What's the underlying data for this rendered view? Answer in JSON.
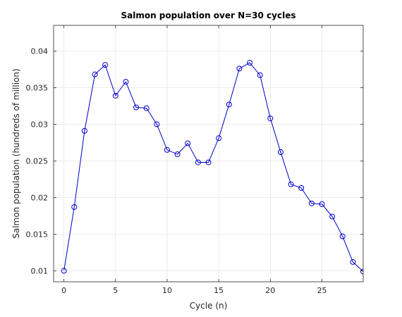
{
  "chart_data": {
    "type": "line",
    "title": "Salmon population over N=30 cycles",
    "xlabel": "Cycle (n)",
    "ylabel": "Salmon population (hundreds of million)",
    "xlim": [
      -1,
      29
    ],
    "ylim": [
      0.0085,
      0.0435
    ],
    "xticks": [
      0,
      5,
      10,
      15,
      20,
      25
    ],
    "yticks": [
      0.01,
      0.015,
      0.02,
      0.025,
      0.03,
      0.035,
      0.04
    ],
    "ytick_labels": [
      "0.01",
      "0.015",
      "0.02",
      "0.025",
      "0.03",
      "0.035",
      "0.04"
    ],
    "grid": true,
    "marker": "circle",
    "series": [
      {
        "color": "#0000cc",
        "x": [
          0,
          1,
          2,
          3,
          4,
          5,
          6,
          7,
          8,
          9,
          10,
          11,
          12,
          13,
          14,
          15,
          16,
          17,
          18,
          19,
          20,
          21,
          22,
          23,
          24,
          25,
          26,
          27,
          28,
          29
        ],
        "values": [
          0.01,
          0.0187,
          0.0291,
          0.0368,
          0.0381,
          0.0339,
          0.0358,
          0.0323,
          0.0322,
          0.03,
          0.0265,
          0.0259,
          0.0274,
          0.0248,
          0.0248,
          0.0281,
          0.0327,
          0.0376,
          0.0384,
          0.0367,
          0.0308,
          0.0262,
          0.0218,
          0.0213,
          0.0192,
          0.0191,
          0.0174,
          0.0147,
          0.0112,
          0.0099
        ]
      }
    ]
  }
}
